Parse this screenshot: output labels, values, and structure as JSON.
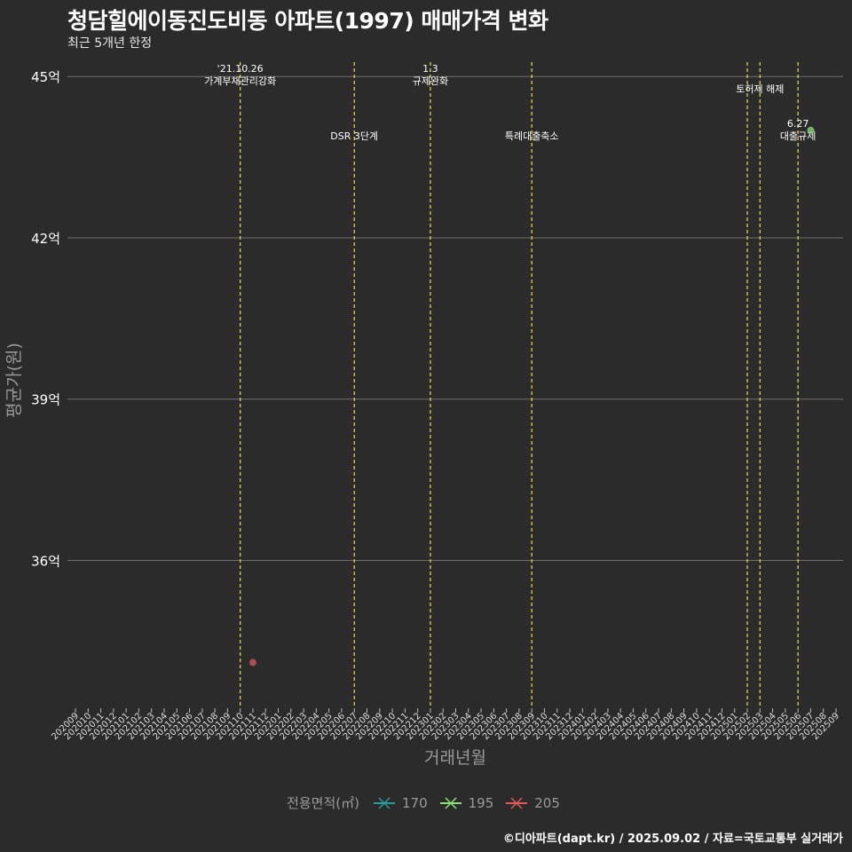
{
  "chart_data": {
    "type": "scatter",
    "title": "청담힐에이동진도비동 아파트(1997) 매매가격 변화",
    "subtitle": "최근 5개년 한정",
    "xlabel": "거래년월",
    "ylabel": "평균가(원)",
    "caption": "©디아파트(dapt.kr) / 2025.09.02 / 자료=국토교통부 실거래가",
    "legend_title": "전용면적(㎡)",
    "legend_position": "bottom",
    "ylim": [
      33.3,
      45.4
    ],
    "y_ticks": [
      {
        "value": 36,
        "label": "36억"
      },
      {
        "value": 39,
        "label": "39억"
      },
      {
        "value": 42,
        "label": "42억"
      },
      {
        "value": 45,
        "label": "45억"
      }
    ],
    "x_ticks": [
      "202009",
      "202010",
      "202011",
      "202012",
      "202101",
      "202102",
      "202103",
      "202104",
      "202105",
      "202106",
      "202107",
      "202108",
      "202109",
      "202110",
      "202111",
      "202112",
      "202201",
      "202202",
      "202203",
      "202204",
      "202205",
      "202206",
      "202207",
      "202208",
      "202209",
      "202210",
      "202211",
      "202212",
      "202301",
      "202302",
      "202303",
      "202304",
      "202305",
      "202306",
      "202307",
      "202308",
      "202309",
      "202310",
      "202311",
      "202312",
      "202401",
      "202402",
      "202403",
      "202404",
      "202405",
      "202406",
      "202407",
      "202408",
      "202409",
      "202410",
      "202411",
      "202412",
      "202501",
      "202502",
      "202503",
      "202504",
      "202505",
      "202506",
      "202507",
      "202508",
      "202509"
    ],
    "series": [
      {
        "name": "170",
        "color": "#2a9d9a",
        "points": []
      },
      {
        "name": "195",
        "color": "#8ee07a",
        "points": [
          {
            "x": "202507",
            "y": 44.0
          }
        ]
      },
      {
        "name": "205",
        "color": "#e05a5a",
        "points": [
          {
            "x": "202111",
            "y": 34.1
          }
        ]
      }
    ],
    "events": [
      {
        "x": "202110",
        "label": "'21.10.26\n가계부채관리강화",
        "level": "high"
      },
      {
        "x": "202207",
        "label": "DSR 3단계",
        "level": "low"
      },
      {
        "x": "202301",
        "label": "1.3\n규제완화",
        "level": "high"
      },
      {
        "x": "202309",
        "label": "특례대출축소",
        "level": "low"
      },
      {
        "x": "202502",
        "label": "",
        "level": "none"
      },
      {
        "x": "202503",
        "label": "토허제 해제",
        "level": "mid"
      },
      {
        "x": "202506",
        "label": "6.27\n대출규제",
        "level": "low"
      }
    ]
  }
}
